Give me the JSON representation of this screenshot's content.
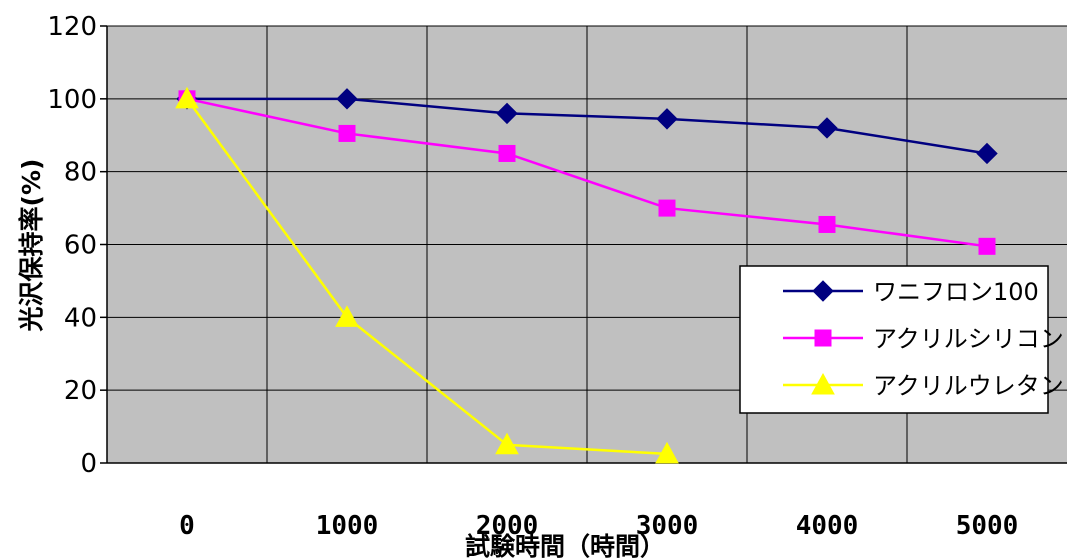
{
  "chart_data": {
    "type": "line",
    "title": "",
    "xlabel": "試験時間（時間）",
    "ylabel": "光沢保持率(%)",
    "x": [
      0,
      1000,
      2000,
      3000,
      4000,
      5000
    ],
    "ylim": [
      0,
      120
    ],
    "yticks": [
      0,
      20,
      40,
      60,
      80,
      100,
      120
    ],
    "grid": true,
    "legend_position": "right",
    "plot_background": "#c0c0c0",
    "series": [
      {
        "name": "ワニフロン100",
        "color": "#000080",
        "marker": "diamond",
        "x": [
          0,
          1000,
          2000,
          3000,
          4000,
          5000
        ],
        "values": [
          100,
          100,
          96,
          94.5,
          92,
          85
        ]
      },
      {
        "name": "アクリルシリコン",
        "color": "#ff00ff",
        "marker": "square",
        "x": [
          0,
          1000,
          2000,
          3000,
          4000,
          5000
        ],
        "values": [
          100,
          90.5,
          85,
          70,
          65.5,
          59.5
        ]
      },
      {
        "name": "アクリルウレタン",
        "color": "#ffff00",
        "marker": "triangle",
        "x": [
          0,
          1000,
          2000,
          3000
        ],
        "values": [
          100,
          40,
          5,
          2.5
        ]
      }
    ]
  }
}
